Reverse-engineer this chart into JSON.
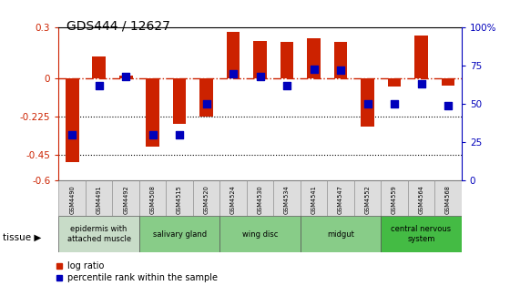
{
  "title": "GDS444 / 12627",
  "samples": [
    "GSM4490",
    "GSM4491",
    "GSM4492",
    "GSM4508",
    "GSM4515",
    "GSM4520",
    "GSM4524",
    "GSM4530",
    "GSM4534",
    "GSM4541",
    "GSM4547",
    "GSM4552",
    "GSM4559",
    "GSM4564",
    "GSM4568"
  ],
  "log_ratio": [
    -0.49,
    0.13,
    0.015,
    -0.4,
    -0.265,
    -0.225,
    0.275,
    0.22,
    0.215,
    0.235,
    0.215,
    -0.28,
    -0.045,
    0.255,
    -0.04
  ],
  "percentile": [
    30,
    62,
    68,
    30,
    30,
    50,
    70,
    68,
    62,
    73,
    72,
    50,
    50,
    63,
    49
  ],
  "ylim_left": [
    -0.6,
    0.3
  ],
  "ylim_right": [
    0,
    100
  ],
  "yticks_left": [
    0.3,
    0.0,
    -0.225,
    -0.45,
    -0.6
  ],
  "yticks_left_labels": [
    "0.3",
    "0",
    "-0.225",
    "-0.45",
    "-0.6"
  ],
  "yticks_right": [
    100,
    75,
    50,
    25,
    0
  ],
  "yticks_right_labels": [
    "100%",
    "75",
    "50",
    "25",
    "0"
  ],
  "bar_color": "#cc2200",
  "dot_color": "#0000bb",
  "zero_line_color": "#cc2200",
  "hline_color": "#000000",
  "tissue_groups": [
    {
      "label": "epidermis with\nattached muscle",
      "start": 0,
      "end": 3,
      "color": "#c8dcc8"
    },
    {
      "label": "salivary gland",
      "start": 3,
      "end": 6,
      "color": "#88cc88"
    },
    {
      "label": "wing disc",
      "start": 6,
      "end": 9,
      "color": "#88cc88"
    },
    {
      "label": "midgut",
      "start": 9,
      "end": 12,
      "color": "#88cc88"
    },
    {
      "label": "central nervous\nsystem",
      "start": 12,
      "end": 15,
      "color": "#44bb44"
    }
  ],
  "tissue_label": "tissue",
  "legend_log_ratio": "log ratio",
  "legend_percentile": "percentile rank within the sample",
  "bar_width": 0.5
}
